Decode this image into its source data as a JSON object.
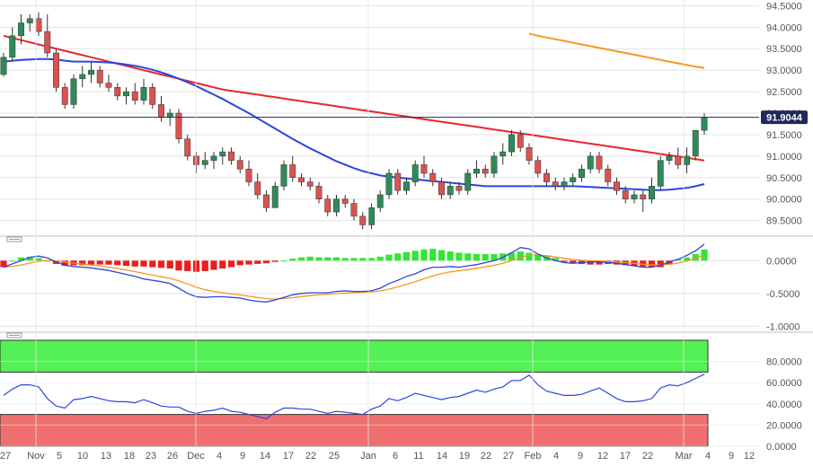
{
  "chart_data": [
    {
      "type": "candlestick",
      "ylim": [
        89.2,
        94.55
      ],
      "yticks": [
        "94.5000",
        "94.0000",
        "93.5000",
        "93.0000",
        "92.5000",
        "92.0000",
        "91.5000",
        "91.0000",
        "90.5000",
        "90.0000",
        "89.5000"
      ],
      "current_price": "91.9044",
      "ohlc": [
        [
          92.9,
          93.4,
          92.85,
          93.3
        ],
        [
          93.3,
          94.0,
          93.2,
          93.8
        ],
        [
          93.8,
          94.3,
          93.6,
          94.1
        ],
        [
          94.1,
          94.3,
          93.9,
          94.2
        ],
        [
          94.2,
          94.35,
          93.8,
          93.9
        ],
        [
          93.9,
          94.3,
          93.3,
          93.4
        ],
        [
          93.4,
          93.5,
          92.5,
          92.6
        ],
        [
          92.6,
          92.7,
          92.1,
          92.2
        ],
        [
          92.2,
          92.9,
          92.1,
          92.8
        ],
        [
          92.8,
          93.1,
          92.6,
          92.9
        ],
        [
          92.9,
          93.2,
          92.7,
          93.0
        ],
        [
          93.0,
          93.1,
          92.6,
          92.7
        ],
        [
          92.7,
          92.9,
          92.5,
          92.6
        ],
        [
          92.6,
          92.7,
          92.3,
          92.4
        ],
        [
          92.4,
          92.6,
          92.2,
          92.5
        ],
        [
          92.5,
          92.7,
          92.2,
          92.3
        ],
        [
          92.3,
          92.8,
          92.2,
          92.6
        ],
        [
          92.6,
          92.7,
          92.1,
          92.2
        ],
        [
          92.2,
          92.4,
          91.8,
          91.9
        ],
        [
          91.9,
          92.1,
          91.7,
          92.0
        ],
        [
          92.0,
          92.1,
          91.3,
          91.4
        ],
        [
          91.4,
          91.5,
          90.9,
          91.0
        ],
        [
          91.0,
          91.1,
          90.6,
          90.8
        ],
        [
          90.8,
          91.1,
          90.7,
          90.9
        ],
        [
          90.9,
          91.1,
          90.7,
          91.0
        ],
        [
          91.0,
          91.2,
          90.8,
          91.1
        ],
        [
          91.1,
          91.2,
          90.8,
          90.9
        ],
        [
          90.9,
          91.0,
          90.6,
          90.7
        ],
        [
          90.7,
          90.9,
          90.3,
          90.4
        ],
        [
          90.4,
          90.6,
          90.0,
          90.1
        ],
        [
          90.1,
          90.2,
          89.7,
          89.8
        ],
        [
          89.8,
          90.4,
          89.8,
          90.3
        ],
        [
          90.3,
          90.9,
          90.2,
          90.8
        ],
        [
          90.8,
          91.0,
          90.4,
          90.5
        ],
        [
          90.5,
          90.6,
          90.3,
          90.4
        ],
        [
          90.4,
          90.5,
          90.2,
          90.3
        ],
        [
          90.3,
          90.4,
          89.9,
          90.0
        ],
        [
          90.0,
          90.1,
          89.6,
          89.7
        ],
        [
          89.7,
          90.1,
          89.6,
          90.0
        ],
        [
          90.0,
          90.1,
          89.8,
          89.9
        ],
        [
          89.9,
          90.0,
          89.5,
          89.6
        ],
        [
          89.6,
          89.7,
          89.3,
          89.4
        ],
        [
          89.4,
          89.9,
          89.3,
          89.8
        ],
        [
          89.8,
          90.2,
          89.7,
          90.1
        ],
        [
          90.1,
          90.7,
          90.0,
          90.6
        ],
        [
          90.6,
          90.7,
          90.1,
          90.2
        ],
        [
          90.2,
          90.5,
          90.1,
          90.4
        ],
        [
          90.4,
          90.9,
          90.3,
          90.8
        ],
        [
          90.8,
          91.0,
          90.5,
          90.6
        ],
        [
          90.6,
          90.7,
          90.3,
          90.4
        ],
        [
          90.4,
          90.5,
          90.0,
          90.1
        ],
        [
          90.1,
          90.4,
          90.0,
          90.3
        ],
        [
          90.3,
          90.4,
          90.1,
          90.2
        ],
        [
          90.2,
          90.7,
          90.1,
          90.6
        ],
        [
          90.6,
          90.9,
          90.5,
          90.7
        ],
        [
          90.7,
          90.8,
          90.5,
          90.6
        ],
        [
          90.6,
          91.1,
          90.5,
          91.0
        ],
        [
          91.0,
          91.3,
          90.8,
          91.1
        ],
        [
          91.1,
          91.6,
          91.0,
          91.5
        ],
        [
          91.5,
          91.6,
          91.1,
          91.2
        ],
        [
          91.2,
          91.3,
          90.8,
          90.9
        ],
        [
          90.9,
          91.0,
          90.5,
          90.6
        ],
        [
          90.6,
          90.7,
          90.3,
          90.4
        ],
        [
          90.4,
          90.5,
          90.2,
          90.3
        ],
        [
          90.3,
          90.5,
          90.2,
          90.4
        ],
        [
          90.4,
          90.6,
          90.3,
          90.5
        ],
        [
          90.5,
          90.8,
          90.4,
          90.7
        ],
        [
          90.7,
          91.1,
          90.6,
          91.0
        ],
        [
          91.0,
          91.1,
          90.6,
          90.7
        ],
        [
          90.7,
          90.8,
          90.3,
          90.4
        ],
        [
          90.4,
          90.5,
          90.1,
          90.2
        ],
        [
          90.2,
          90.3,
          89.9,
          90.0
        ],
        [
          90.0,
          90.2,
          89.9,
          90.1
        ],
        [
          90.1,
          90.2,
          89.7,
          90.0
        ],
        [
          90.0,
          90.5,
          89.9,
          90.3
        ],
        [
          90.3,
          91.0,
          90.2,
          90.9
        ],
        [
          90.9,
          91.1,
          90.8,
          91.0
        ],
        [
          91.0,
          91.2,
          90.7,
          90.8
        ],
        [
          90.8,
          91.2,
          90.6,
          91.0
        ],
        [
          91.0,
          91.6,
          90.9,
          91.6
        ],
        [
          91.6,
          92.0,
          91.5,
          91.9
        ]
      ],
      "ma_series": [
        {
          "color": "#e8262c",
          "values": [
            93.8,
            93.75,
            93.7,
            93.65,
            93.6,
            93.55,
            93.5,
            93.45,
            93.4,
            93.35,
            93.3,
            93.25,
            93.2,
            93.15,
            93.1,
            93.05,
            93.0,
            92.95,
            92.9,
            92.85,
            92.8,
            92.75,
            92.7,
            92.65,
            92.6,
            92.55,
            92.52,
            92.49,
            92.46,
            92.43,
            92.4,
            92.37,
            92.34,
            92.31,
            92.28,
            92.25,
            92.22,
            92.19,
            92.16,
            92.13,
            92.1,
            92.07,
            92.04,
            92.01,
            91.98,
            91.95,
            91.92,
            91.89,
            91.86,
            91.83,
            91.8,
            91.77,
            91.74,
            91.71,
            91.68,
            91.65,
            91.62,
            91.59,
            91.56,
            91.53,
            91.5,
            91.47,
            91.44,
            91.41,
            91.38,
            91.35,
            91.32,
            91.29,
            91.26,
            91.23,
            91.2,
            91.17,
            91.14,
            91.11,
            91.08,
            91.05,
            91.02,
            90.99,
            90.96,
            90.93,
            90.9
          ]
        },
        {
          "color": "#2b46e0",
          "values": [
            93.2,
            93.22,
            93.24,
            93.25,
            93.26,
            93.26,
            93.25,
            93.22,
            93.2,
            93.2,
            93.2,
            93.19,
            93.18,
            93.16,
            93.13,
            93.1,
            93.06,
            93.01,
            92.95,
            92.88,
            92.8,
            92.72,
            92.63,
            92.53,
            92.43,
            92.33,
            92.22,
            92.11,
            92.0,
            91.88,
            91.76,
            91.64,
            91.52,
            91.4,
            91.29,
            91.18,
            91.08,
            90.98,
            90.88,
            90.8,
            90.72,
            90.65,
            90.6,
            90.55,
            90.52,
            90.5,
            90.48,
            90.46,
            90.44,
            90.42,
            90.4,
            90.38,
            90.36,
            90.34,
            90.32,
            90.3,
            90.3,
            90.3,
            90.3,
            90.3,
            90.3,
            90.3,
            90.3,
            90.3,
            90.3,
            90.3,
            90.29,
            90.28,
            90.27,
            90.26,
            90.25,
            90.24,
            90.23,
            90.22,
            90.21,
            90.21,
            90.22,
            90.24,
            90.26,
            90.3,
            90.35
          ]
        },
        {
          "color": "#f5981f",
          "values": [
            null,
            null,
            null,
            null,
            null,
            null,
            null,
            null,
            null,
            null,
            null,
            null,
            null,
            null,
            null,
            null,
            null,
            null,
            null,
            null,
            null,
            null,
            null,
            null,
            null,
            null,
            null,
            null,
            null,
            null,
            null,
            null,
            null,
            null,
            null,
            null,
            null,
            null,
            null,
            null,
            null,
            null,
            null,
            null,
            null,
            null,
            null,
            null,
            null,
            null,
            null,
            null,
            null,
            null,
            null,
            null,
            null,
            null,
            null,
            null,
            93.85,
            93.8,
            93.76,
            93.72,
            93.68,
            93.64,
            93.6,
            93.56,
            93.52,
            93.48,
            93.44,
            93.4,
            93.36,
            93.32,
            93.28,
            93.24,
            93.2,
            93.16,
            93.12,
            93.08,
            93.05
          ]
        }
      ]
    },
    {
      "type": "macd",
      "ylim": [
        -1.05,
        0.25
      ],
      "yticks": [
        "0.0000",
        "-0.5000",
        "-1.0000"
      ],
      "histogram": [
        -0.1,
        0.0,
        0.05,
        0.06,
        0.04,
        0.0,
        -0.05,
        -0.08,
        -0.07,
        -0.07,
        -0.06,
        -0.06,
        -0.06,
        -0.07,
        -0.08,
        -0.09,
        -0.09,
        -0.1,
        -0.11,
        -0.12,
        -0.15,
        -0.16,
        -0.17,
        -0.16,
        -0.14,
        -0.12,
        -0.1,
        -0.07,
        -0.06,
        -0.05,
        -0.04,
        -0.02,
        0.0,
        0.03,
        0.05,
        0.06,
        0.05,
        0.05,
        0.05,
        0.04,
        0.04,
        0.04,
        0.04,
        0.06,
        0.09,
        0.11,
        0.13,
        0.15,
        0.17,
        0.18,
        0.16,
        0.14,
        0.12,
        0.11,
        0.1,
        0.1,
        0.1,
        0.11,
        0.12,
        0.14,
        0.12,
        0.1,
        0.08,
        0.04,
        -0.02,
        -0.04,
        -0.05,
        -0.06,
        -0.06,
        -0.05,
        -0.06,
        -0.07,
        -0.08,
        -0.09,
        -0.1,
        -0.1,
        -0.06,
        0.02,
        0.05,
        0.1,
        0.17
      ],
      "macd_line": [
        -0.1,
        -0.05,
        0.0,
        0.05,
        0.07,
        0.04,
        -0.02,
        -0.07,
        -0.09,
        -0.1,
        -0.11,
        -0.13,
        -0.15,
        -0.18,
        -0.21,
        -0.24,
        -0.28,
        -0.3,
        -0.32,
        -0.35,
        -0.42,
        -0.5,
        -0.55,
        -0.56,
        -0.55,
        -0.55,
        -0.56,
        -0.57,
        -0.6,
        -0.62,
        -0.63,
        -0.6,
        -0.56,
        -0.52,
        -0.5,
        -0.49,
        -0.49,
        -0.49,
        -0.47,
        -0.46,
        -0.47,
        -0.47,
        -0.46,
        -0.42,
        -0.35,
        -0.3,
        -0.24,
        -0.2,
        -0.14,
        -0.1,
        -0.1,
        -0.09,
        -0.1,
        -0.08,
        -0.06,
        -0.03,
        0.0,
        0.05,
        0.12,
        0.2,
        0.18,
        0.1,
        0.04,
        0.0,
        -0.03,
        -0.04,
        -0.03,
        -0.02,
        -0.02,
        -0.03,
        -0.04,
        -0.06,
        -0.08,
        -0.1,
        -0.1,
        -0.07,
        -0.02,
        0.02,
        0.08,
        0.15,
        0.25
      ]
    },
    {
      "type": "rsi",
      "ylim": [
        0,
        100
      ],
      "yticks": [
        "80.0000",
        "60.0000",
        "40.0000",
        "20.0000",
        "0.0000"
      ],
      "overbought": 70,
      "oversold": 30,
      "values": [
        48,
        54,
        58,
        58,
        56,
        45,
        38,
        36,
        44,
        45,
        47,
        45,
        43,
        42,
        42,
        41,
        44,
        41,
        38,
        37,
        37,
        33,
        31,
        33,
        34,
        36,
        33,
        32,
        30,
        28,
        26,
        32,
        36,
        36,
        35,
        35,
        33,
        31,
        33,
        32,
        31,
        30,
        35,
        38,
        45,
        43,
        46,
        50,
        48,
        46,
        44,
        46,
        47,
        50,
        53,
        51,
        54,
        56,
        62,
        62,
        67,
        58,
        52,
        50,
        48,
        48,
        49,
        52,
        55,
        50,
        45,
        42,
        42,
        43,
        45,
        55,
        58,
        57,
        60,
        64,
        68
      ]
    }
  ],
  "x_axis": {
    "labels": [
      "27",
      "Nov",
      "5",
      "10",
      "13",
      "18",
      "23",
      "26",
      "Dec",
      "4",
      "9",
      "14",
      "17",
      "22",
      "25",
      "Jan",
      "6",
      "11",
      "14",
      "19",
      "22",
      "27",
      "Feb",
      "4",
      "9",
      "12",
      "17",
      "22",
      "Mar",
      "4",
      "9",
      "12"
    ]
  }
}
